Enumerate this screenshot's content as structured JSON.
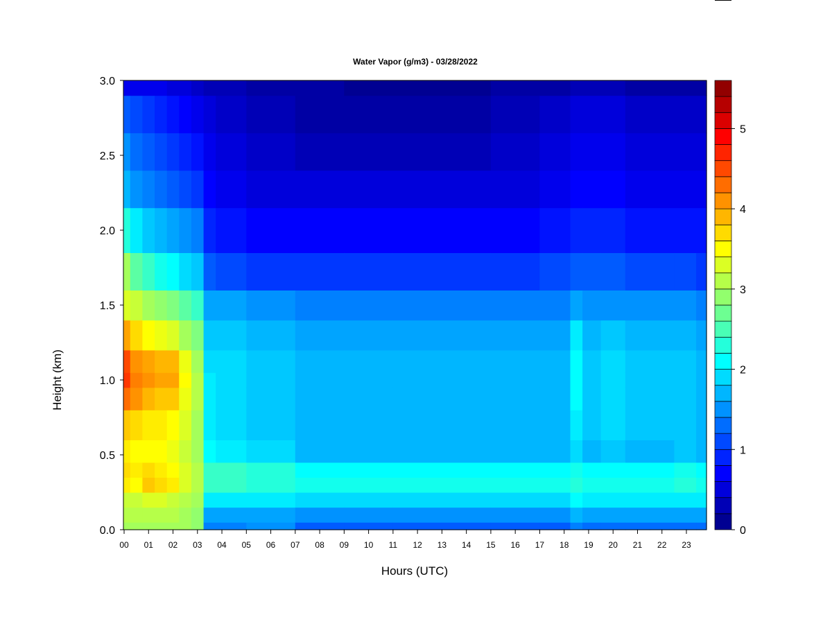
{
  "chart_data": {
    "type": "heatmap",
    "title": "Water Vapor (g/m3) - 03/28/2022",
    "xlabel": "Hours (UTC)",
    "ylabel": "Height (km)",
    "x_unit": "hours UTC",
    "xlim": [
      0,
      24
    ],
    "ylim": [
      0.0,
      3.0
    ],
    "x_ticks": [
      "00",
      "01",
      "02",
      "03",
      "04",
      "05",
      "06",
      "07",
      "08",
      "09",
      "10",
      "11",
      "12",
      "13",
      "14",
      "15",
      "16",
      "17",
      "18",
      "19",
      "20",
      "21",
      "22",
      "23"
    ],
    "y_ticks": [
      "0.0",
      "0.5",
      "1.0",
      "1.5",
      "2.0",
      "2.5",
      "3.0"
    ],
    "colorbar": {
      "range": [
        0,
        5.6
      ],
      "step": 0.2,
      "ticks": [
        "0",
        "1",
        "2",
        "3",
        "4",
        "5"
      ],
      "colormap": "jet"
    },
    "grid": false,
    "note_on_values": "approximate water vapor density (g/m3) read from color",
    "hours": [
      0,
      0.5,
      1,
      1.5,
      2,
      2.5,
      3,
      3.5,
      4,
      6,
      8,
      10,
      12,
      14,
      16,
      18,
      18.5,
      19,
      20,
      21,
      22,
      23,
      23.8
    ],
    "heights_km": [
      0.0,
      0.1,
      0.2,
      0.3,
      0.4,
      0.5,
      0.7,
      0.9,
      1.0,
      1.1,
      1.3,
      1.5,
      1.7,
      2.0,
      2.3,
      2.5,
      2.8,
      3.0
    ],
    "values": [
      [
        3.0,
        3.1,
        3.2,
        3.6,
        3.7,
        3.6,
        3.8,
        4.3,
        4.6,
        4.5,
        4.0,
        3.3,
        3.0,
        2.3,
        1.7,
        1.5,
        1.2,
        0.6
      ],
      [
        3.0,
        3.1,
        3.2,
        3.5,
        3.6,
        3.5,
        3.7,
        4.1,
        4.2,
        4.1,
        3.7,
        3.2,
        2.6,
        2.0,
        1.5,
        1.3,
        1.1,
        0.6
      ],
      [
        3.0,
        3.1,
        3.3,
        3.8,
        3.7,
        3.5,
        3.6,
        3.9,
        4.1,
        4.0,
        3.5,
        3.0,
        2.4,
        1.8,
        1.4,
        1.2,
        1.0,
        0.6
      ],
      [
        3.0,
        3.1,
        3.3,
        3.7,
        3.6,
        3.5,
        3.6,
        3.8,
        4.0,
        3.9,
        3.4,
        2.9,
        2.2,
        1.7,
        1.3,
        1.1,
        0.9,
        0.6
      ],
      [
        3.0,
        3.1,
        3.2,
        3.6,
        3.5,
        3.4,
        3.5,
        3.8,
        4.0,
        3.9,
        3.3,
        2.8,
        2.1,
        1.6,
        1.2,
        1.0,
        0.8,
        0.5
      ],
      [
        3.0,
        3.0,
        3.1,
        3.3,
        3.3,
        3.2,
        3.3,
        3.4,
        3.5,
        3.4,
        3.0,
        2.6,
        1.9,
        1.5,
        1.1,
        0.9,
        0.7,
        0.5
      ],
      [
        2.9,
        2.9,
        3.0,
        3.1,
        3.1,
        3.0,
        3.0,
        3.1,
        3.1,
        3.0,
        2.8,
        2.4,
        1.8,
        1.4,
        1.0,
        0.8,
        0.6,
        0.4
      ],
      [
        1.4,
        1.6,
        2.0,
        2.4,
        2.4,
        2.1,
        2.0,
        2.0,
        2.0,
        1.9,
        1.8,
        1.6,
        1.2,
        0.9,
        0.7,
        0.6,
        0.5,
        0.3
      ],
      [
        1.4,
        1.6,
        2.0,
        2.4,
        2.4,
        2.0,
        1.9,
        1.9,
        1.9,
        1.9,
        1.8,
        1.6,
        1.1,
        0.8,
        0.6,
        0.5,
        0.4,
        0.3
      ],
      [
        1.5,
        1.6,
        2.0,
        2.3,
        2.3,
        1.9,
        1.8,
        1.8,
        1.8,
        1.8,
        1.7,
        1.5,
        1.0,
        0.7,
        0.5,
        0.4,
        0.3,
        0.2
      ],
      [
        1.2,
        1.5,
        1.9,
        2.2,
        2.1,
        1.7,
        1.7,
        1.7,
        1.7,
        1.7,
        1.6,
        1.4,
        1.0,
        0.7,
        0.5,
        0.3,
        0.2,
        0.2
      ],
      [
        1.2,
        1.5,
        1.9,
        2.2,
        2.1,
        1.7,
        1.7,
        1.7,
        1.7,
        1.7,
        1.6,
        1.4,
        1.0,
        0.7,
        0.5,
        0.3,
        0.2,
        0.1
      ],
      [
        1.2,
        1.5,
        1.9,
        2.2,
        2.1,
        1.7,
        1.7,
        1.7,
        1.7,
        1.7,
        1.6,
        1.4,
        1.0,
        0.7,
        0.5,
        0.3,
        0.2,
        0.1
      ],
      [
        1.2,
        1.5,
        1.9,
        2.2,
        2.1,
        1.7,
        1.7,
        1.7,
        1.7,
        1.7,
        1.6,
        1.4,
        1.0,
        0.7,
        0.5,
        0.3,
        0.2,
        0.1
      ],
      [
        1.2,
        1.5,
        1.9,
        2.2,
        2.1,
        1.7,
        1.7,
        1.7,
        1.7,
        1.7,
        1.6,
        1.4,
        1.0,
        0.7,
        0.5,
        0.4,
        0.3,
        0.2
      ],
      [
        1.2,
        1.5,
        1.9,
        2.2,
        2.1,
        1.7,
        1.7,
        1.7,
        1.7,
        1.7,
        1.6,
        1.4,
        1.1,
        0.8,
        0.6,
        0.5,
        0.4,
        0.2
      ],
      [
        1.4,
        1.7,
        2.1,
        2.3,
        2.2,
        1.9,
        2.0,
        2.1,
        2.1,
        2.1,
        2.0,
        1.6,
        1.2,
        0.9,
        0.7,
        0.6,
        0.5,
        0.3
      ],
      [
        1.3,
        1.6,
        2.0,
        2.2,
        2.1,
        1.7,
        1.8,
        1.8,
        1.8,
        1.8,
        1.7,
        1.5,
        1.2,
        0.9,
        0.7,
        0.6,
        0.5,
        0.3
      ],
      [
        1.3,
        1.6,
        2.0,
        2.2,
        2.1,
        1.8,
        1.9,
        1.9,
        1.9,
        1.9,
        1.8,
        1.5,
        1.2,
        0.9,
        0.7,
        0.6,
        0.5,
        0.3
      ],
      [
        1.3,
        1.6,
        2.0,
        2.2,
        2.1,
        1.7,
        1.8,
        1.8,
        1.8,
        1.8,
        1.7,
        1.5,
        1.1,
        0.8,
        0.6,
        0.5,
        0.4,
        0.2
      ],
      [
        1.3,
        1.6,
        2.0,
        2.2,
        2.1,
        1.7,
        1.8,
        1.8,
        1.8,
        1.8,
        1.7,
        1.5,
        1.1,
        0.8,
        0.6,
        0.5,
        0.4,
        0.2
      ],
      [
        1.3,
        1.6,
        2.0,
        2.3,
        2.2,
        1.8,
        1.8,
        1.8,
        1.8,
        1.8,
        1.7,
        1.5,
        1.1,
        0.8,
        0.6,
        0.5,
        0.4,
        0.2
      ],
      [
        1.3,
        1.6,
        2.0,
        2.2,
        2.1,
        1.7,
        1.7,
        1.7,
        1.7,
        1.7,
        1.6,
        1.4,
        1.0,
        0.8,
        0.6,
        0.5,
        0.4,
        0.2
      ]
    ]
  }
}
